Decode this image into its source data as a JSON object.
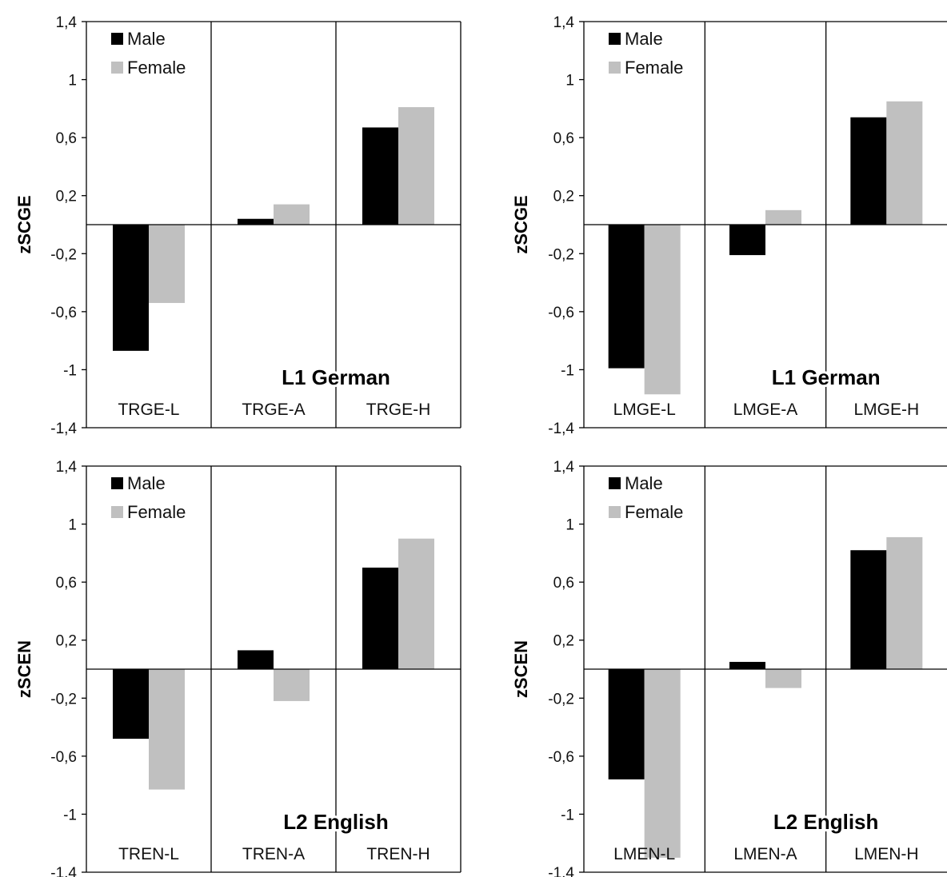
{
  "colors": {
    "male": "#000000",
    "female": "#c0c0c0",
    "axis": "#000000"
  },
  "chart_data": [
    {
      "type": "bar",
      "ylabel": "zSCGE",
      "panel_label": "L1 German",
      "categories": [
        "TRGE-L",
        "TRGE-A",
        "TRGE-H"
      ],
      "series": [
        {
          "name": "Male",
          "values": [
            -0.87,
            0.04,
            0.67
          ]
        },
        {
          "name": "Female",
          "values": [
            -0.54,
            0.14,
            0.81
          ]
        }
      ],
      "ylim": [
        -1.4,
        1.4
      ],
      "yticks": [
        "1,4",
        "1",
        "0,6",
        "0,2",
        "-0,2",
        "-0,6",
        "-1",
        "-1,4"
      ],
      "legend": "top-left",
      "grid": false
    },
    {
      "type": "bar",
      "ylabel": "zSCGE",
      "panel_label": "L1 German",
      "categories": [
        "LMGE-L",
        "LMGE-A",
        "LMGE-H"
      ],
      "series": [
        {
          "name": "Male",
          "values": [
            -0.99,
            -0.21,
            0.74
          ]
        },
        {
          "name": "Female",
          "values": [
            -1.17,
            0.1,
            0.85
          ]
        }
      ],
      "ylim": [
        -1.4,
        1.4
      ],
      "yticks": [
        "1,4",
        "1",
        "0,6",
        "0,2",
        "-0,2",
        "-0,6",
        "-1",
        "-1,4"
      ],
      "legend": "top-left",
      "grid": false
    },
    {
      "type": "bar",
      "ylabel": "zSCEN",
      "panel_label": "L2 English",
      "categories": [
        "TREN-L",
        "TREN-A",
        "TREN-H"
      ],
      "series": [
        {
          "name": "Male",
          "values": [
            -0.48,
            0.13,
            0.7
          ]
        },
        {
          "name": "Female",
          "values": [
            -0.83,
            -0.22,
            0.9
          ]
        }
      ],
      "ylim": [
        -1.4,
        1.4
      ],
      "yticks": [
        "1,4",
        "1",
        "0,6",
        "0,2",
        "-0,2",
        "-0,6",
        "-1",
        "-1,4"
      ],
      "legend": "top-left",
      "grid": false
    },
    {
      "type": "bar",
      "ylabel": "zSCEN",
      "panel_label": "L2 English",
      "categories": [
        "LMEN-L",
        "LMEN-A",
        "LMEN-H"
      ],
      "series": [
        {
          "name": "Male",
          "values": [
            -0.76,
            0.05,
            0.82
          ]
        },
        {
          "name": "Female",
          "values": [
            -1.3,
            -0.13,
            0.91
          ]
        }
      ],
      "ylim": [
        -1.4,
        1.4
      ],
      "yticks": [
        "1,4",
        "1",
        "0,6",
        "0,2",
        "-0,2",
        "-0,6",
        "-1",
        "-1,4"
      ],
      "legend": "top-left",
      "grid": false
    }
  ]
}
